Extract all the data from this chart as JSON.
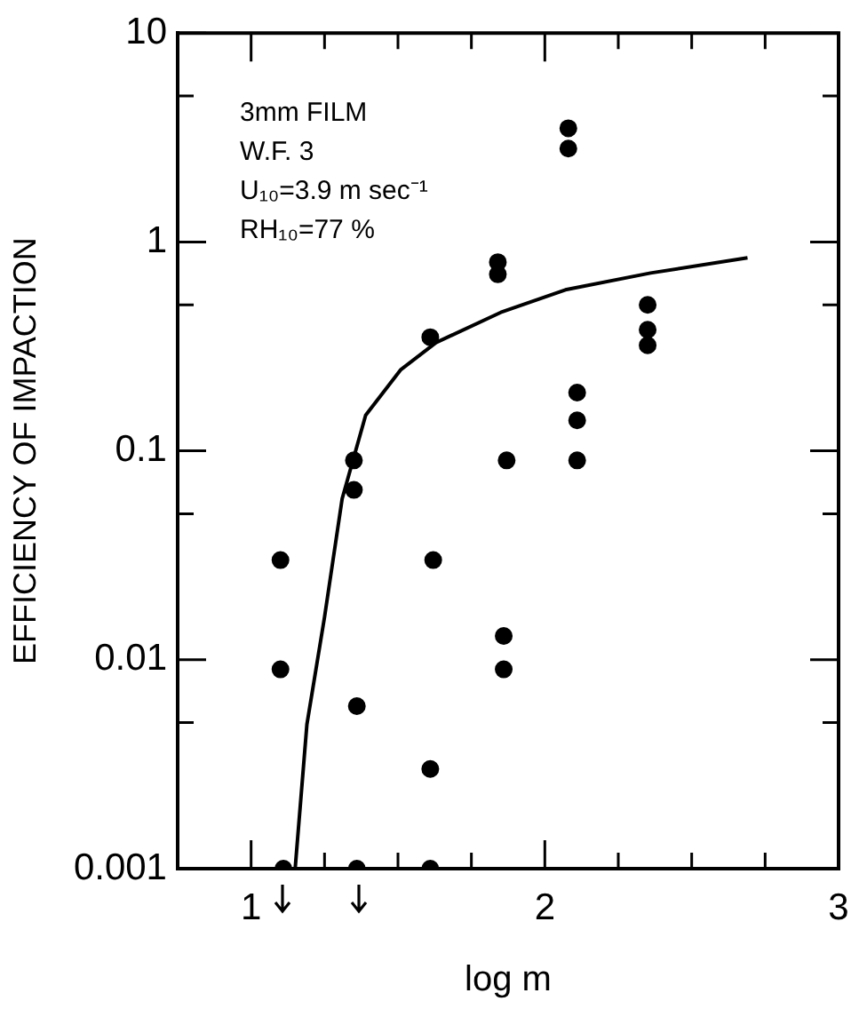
{
  "chart_data": {
    "type": "scatter",
    "xlabel": "log m",
    "ylabel": "EFFICIENCY OF IMPACTION",
    "log": "y",
    "grid": false,
    "legend": false,
    "marker": "circle",
    "xlim": [
      0.75,
      3
    ],
    "ylim": [
      0.001,
      10
    ],
    "xticks": [
      1,
      {
        "value": 1.25,
        "label": null
      },
      {
        "value": 1.5,
        "label": null
      },
      {
        "value": 1.75,
        "label": null
      },
      2,
      {
        "value": 2.25,
        "label": null
      },
      {
        "value": 2.5,
        "label": null
      },
      {
        "value": 2.75,
        "label": null
      },
      3
    ],
    "yticks": [
      0.001,
      {
        "value": 0.005,
        "label": null
      },
      0.01,
      {
        "value": 0.05,
        "label": null
      },
      0.1,
      {
        "value": 0.5,
        "label": null
      },
      1,
      {
        "value": 5,
        "label": null
      },
      10
    ],
    "annotations": [
      "3mm FILM",
      "W.F. 3",
      "U₁₀=3.9 m sec⁻¹",
      "RH₁₀=77 %"
    ],
    "series": [
      {
        "color": "#000000",
        "x": [
          1.1,
          1.1,
          1.11,
          1.35,
          1.35,
          1.36,
          1.36,
          1.61,
          1.62,
          1.61,
          1.61,
          1.84,
          1.84,
          1.86,
          1.86,
          1.87,
          2.08,
          2.08,
          2.11,
          2.11,
          2.11,
          2.35,
          2.35,
          2.35
        ],
        "values": [
          0.03,
          0.009,
          0.001,
          0.09,
          0.065,
          0.006,
          0.001,
          0.35,
          0.03,
          0.003,
          0.001,
          0.8,
          0.7,
          0.013,
          0.009,
          0.09,
          3.5,
          2.8,
          0.19,
          0.14,
          0.09,
          0.5,
          0.38,
          0.32
        ]
      },
      {
        "type": "line",
        "color": "#000000",
        "marker": "none",
        "x": [
          1.15,
          1.19,
          1.25,
          1.31,
          1.39,
          1.51,
          1.63,
          1.85,
          2.07,
          2.36,
          2.69
        ],
        "values": [
          0.001,
          0.0049,
          0.016,
          0.059,
          0.148,
          0.245,
          0.33,
          0.46,
          0.59,
          0.71,
          0.84
        ]
      }
    ]
  }
}
